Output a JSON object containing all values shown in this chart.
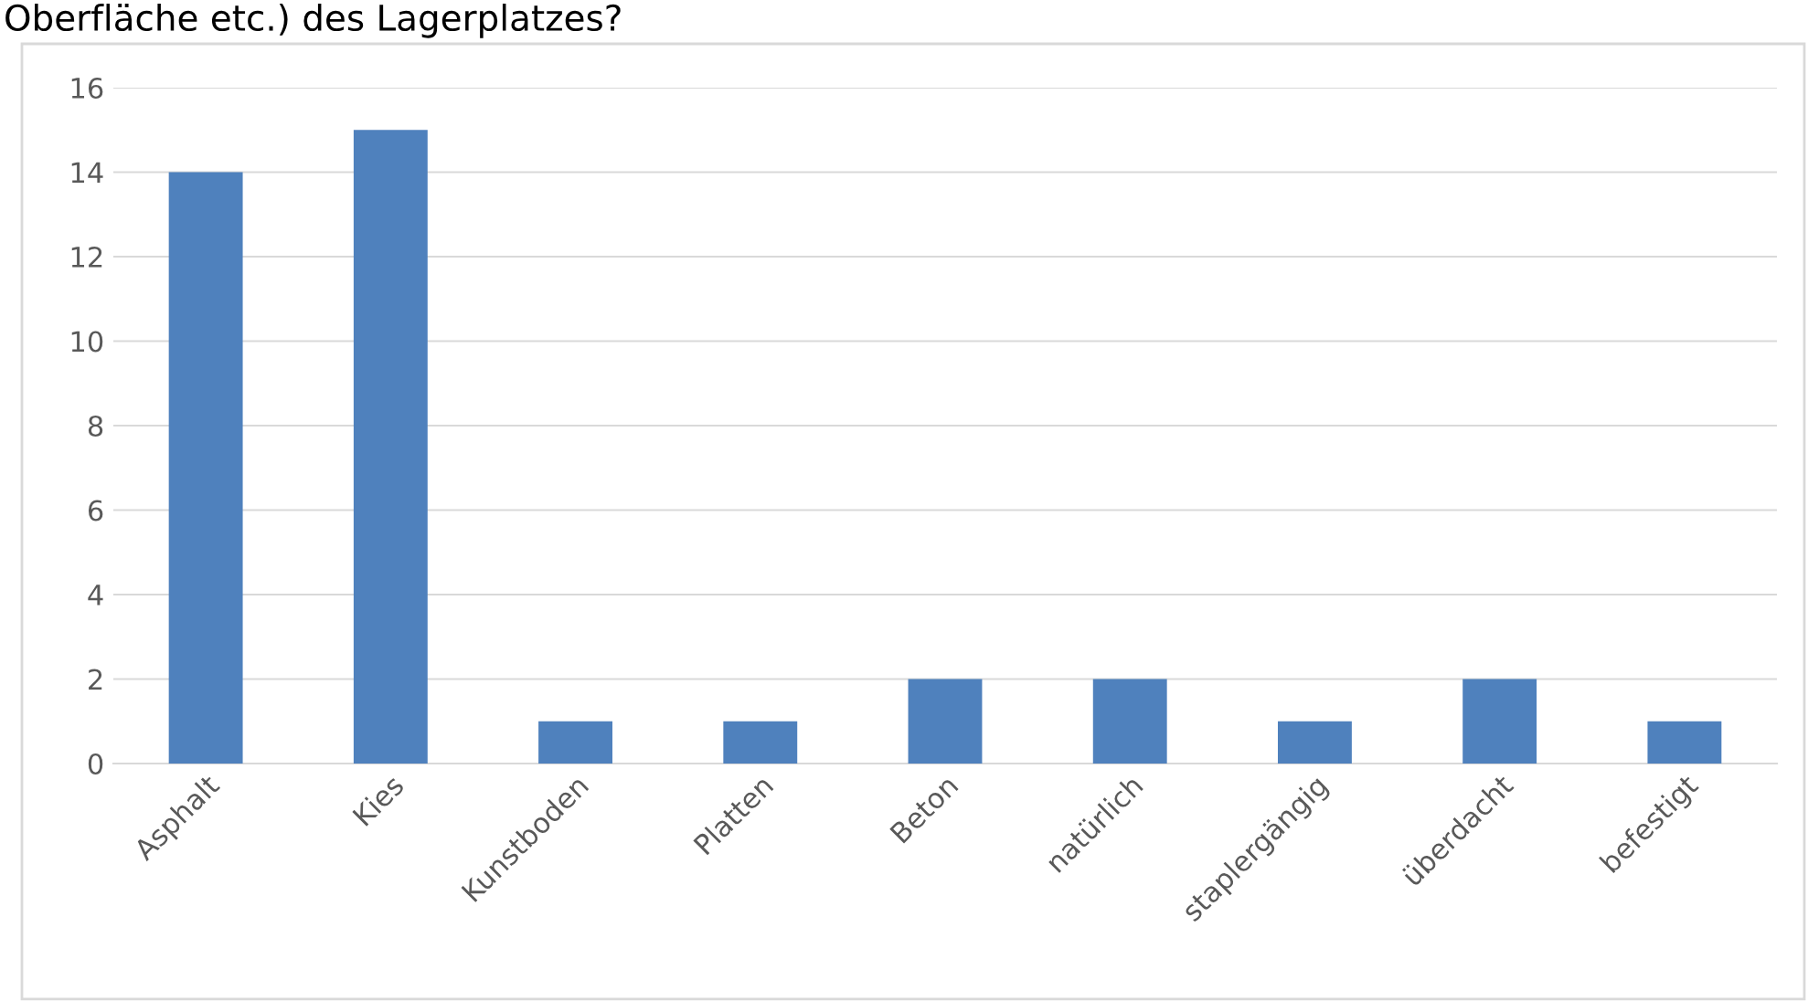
{
  "chart_data": {
    "type": "bar",
    "title": "Oberfläche etc.) des Lagerplatzes?",
    "categories": [
      "Asphalt",
      "Kies",
      "Kunstboden",
      "Platten",
      "Beton",
      "natürlich",
      "staplergängig",
      "überdacht",
      "befestigt"
    ],
    "values": [
      14,
      15,
      1,
      1,
      2,
      2,
      1,
      2,
      1
    ],
    "color": "#4f81bd",
    "ylim": [
      0,
      16
    ],
    "yticks": [
      0,
      2,
      4,
      6,
      8,
      10,
      12,
      14,
      16
    ],
    "grid": "y"
  }
}
